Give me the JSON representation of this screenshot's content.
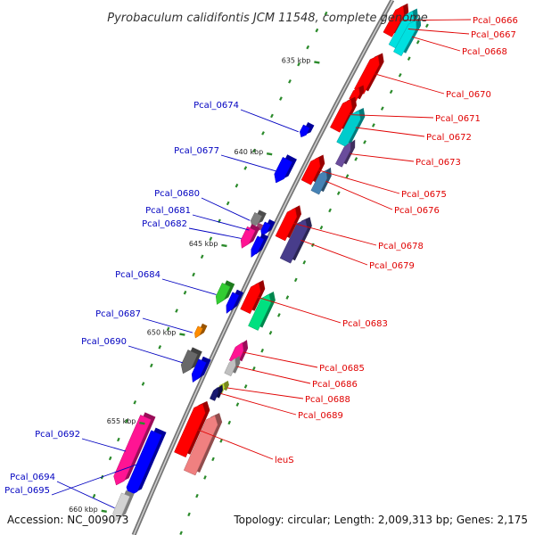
{
  "title": "Pyrobaculum calidifontis JCM 11548, complete genome",
  "footer": {
    "accession": "Accession: NC_009073",
    "topology": "Topology: circular; Length: 2,009,313 bp; Genes: 2,175"
  },
  "ticks": [
    "635 kbp",
    "640 kbp",
    "645 kbp",
    "650 kbp",
    "655 kbp",
    "660 kbp"
  ],
  "genes_forward": [
    {
      "name": "Pcal_0666",
      "color": "#ff0000"
    },
    {
      "name": "Pcal_0667",
      "color": "#00e0e0"
    },
    {
      "name": "Pcal_0668",
      "color": "#00e0e0"
    },
    {
      "name": "Pcal_0670",
      "color": "#ff0000"
    },
    {
      "name": "Pcal_0671",
      "color": "#ff0000"
    },
    {
      "name": "Pcal_0672",
      "color": "#00cccc"
    },
    {
      "name": "Pcal_0673",
      "color": "#6a4c9c"
    },
    {
      "name": "Pcal_0675",
      "color": "#ff0000"
    },
    {
      "name": "Pcal_0676",
      "color": "#4682b4"
    },
    {
      "name": "Pcal_0678",
      "color": "#ff0000"
    },
    {
      "name": "Pcal_0679",
      "color": "#483d8b"
    },
    {
      "name": "Pcal_0683",
      "color": "#00e080"
    },
    {
      "name": "Pcal_0685",
      "color": "#ff1493"
    },
    {
      "name": "Pcal_0686",
      "color": "#c0c0c0"
    },
    {
      "name": "Pcal_0688",
      "color": "#c8e632"
    },
    {
      "name": "Pcal_0689",
      "color": "#191970"
    },
    {
      "name": "leuS",
      "color": "#f08080"
    }
  ],
  "genes_reverse": [
    {
      "name": "Pcal_0674",
      "color": "#0000ff"
    },
    {
      "name": "Pcal_0677",
      "color": "#0000ff"
    },
    {
      "name": "Pcal_0680",
      "color": "#808080"
    },
    {
      "name": "Pcal_0681",
      "color": "#ff69b4"
    },
    {
      "name": "Pcal_0682",
      "color": "#ff1493"
    },
    {
      "name": "Pcal_0684",
      "color": "#32cd32"
    },
    {
      "name": "Pcal_0687",
      "color": "#ff8c00"
    },
    {
      "name": "Pcal_0690",
      "color": "#696969"
    },
    {
      "name": "Pcal_0692",
      "color": "#ff1493"
    },
    {
      "name": "Pcal_0694",
      "color": "#d3d3d3"
    },
    {
      "name": "Pcal_0695",
      "color": "#0000ff"
    }
  ]
}
